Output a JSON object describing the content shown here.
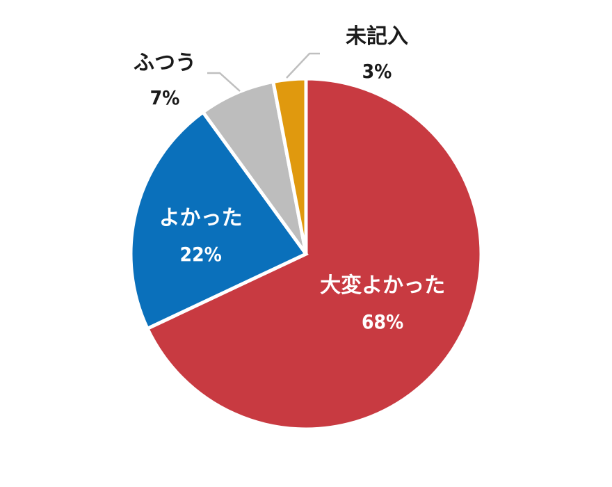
{
  "chart_data": {
    "type": "pie",
    "start_angle_deg": 0,
    "direction": "clockwise",
    "slices": [
      {
        "label": "大変よかった",
        "value": 68,
        "value_label": "68%",
        "color": "#c83a41",
        "label_position": "inside"
      },
      {
        "label": "よかった",
        "value": 22,
        "value_label": "22%",
        "color": "#0a70bb",
        "label_position": "inside"
      },
      {
        "label": "ふつう",
        "value": 7,
        "value_label": "7%",
        "color": "#bdbdbd",
        "label_position": "outside"
      },
      {
        "label": "未記入",
        "value": 3,
        "value_label": "3%",
        "color": "#e0990e",
        "label_position": "outside"
      }
    ],
    "leader_color": "#bfbfbf",
    "background": "#ffffff"
  }
}
